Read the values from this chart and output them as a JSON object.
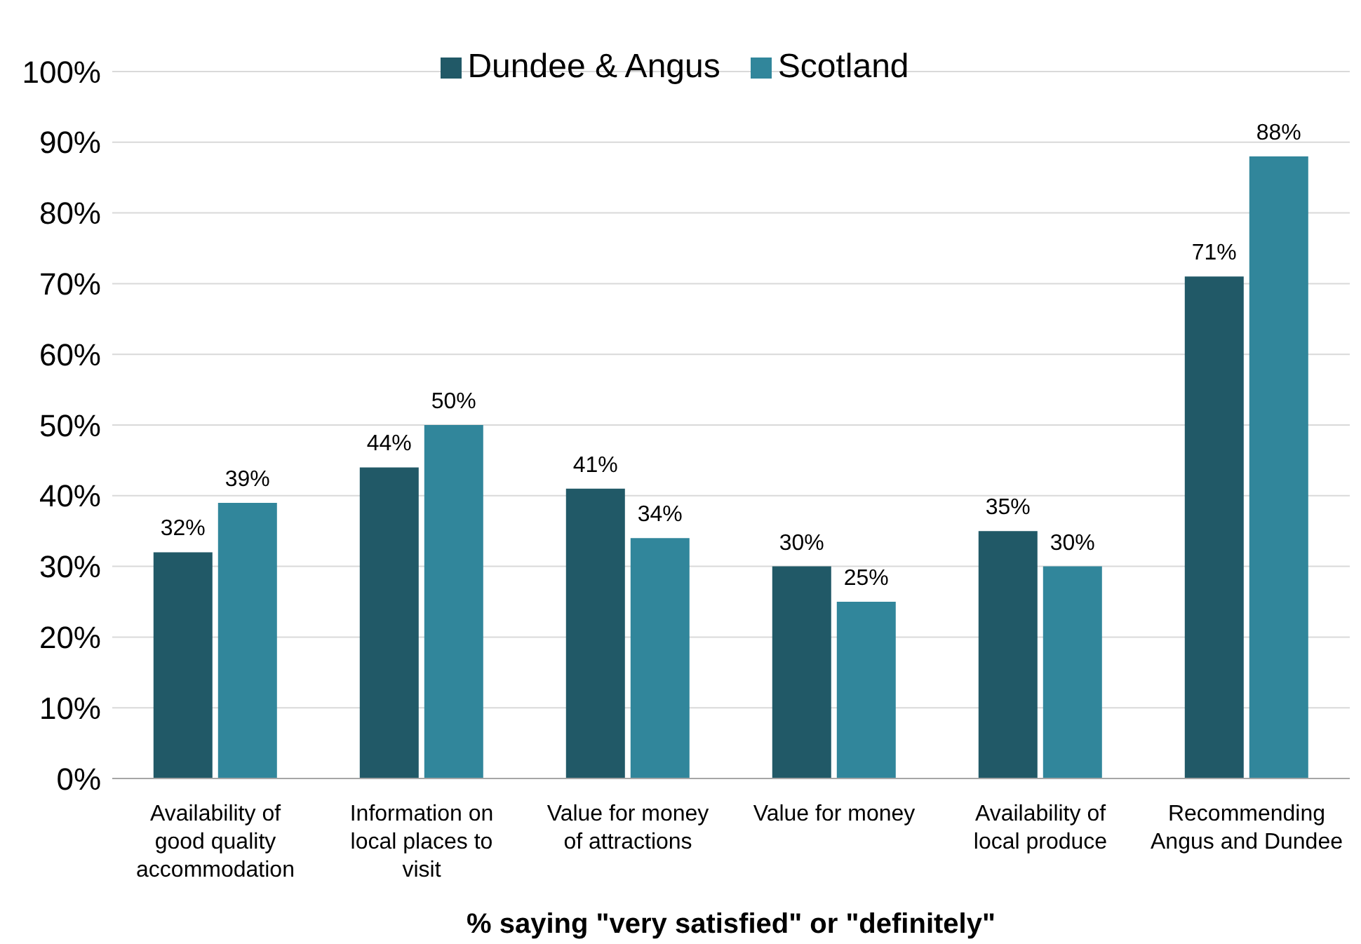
{
  "chart_data": {
    "type": "bar",
    "xlabel": "% saying \"very satisfied\" or \"definitely\"",
    "categories": [
      "Availability of good quality accommodation",
      "Information on local places to visit",
      "Value for money of attractions",
      "Value for money",
      "Availability of local produce",
      "Recommending Angus and Dundee"
    ],
    "series": [
      {
        "name": "Dundee & Angus",
        "color": "#215967",
        "values": [
          32,
          44,
          41,
          30,
          35,
          71
        ],
        "value_labels": [
          "32%",
          "44%",
          "41%",
          "30%",
          "35%",
          "71%"
        ]
      },
      {
        "name": "Scotland",
        "color": "#31869b",
        "values": [
          39,
          50,
          34,
          25,
          30,
          88
        ],
        "value_labels": [
          "39%",
          "50%",
          "34%",
          "25%",
          "30%",
          "88%"
        ]
      }
    ],
    "ylim": [
      0,
      100
    ],
    "yticks": [
      {
        "value": 0,
        "label": "0%"
      },
      {
        "value": 10,
        "label": "10%"
      },
      {
        "value": 20,
        "label": "20%"
      },
      {
        "value": 30,
        "label": "30%"
      },
      {
        "value": 40,
        "label": "40%"
      },
      {
        "value": 50,
        "label": "50%"
      },
      {
        "value": 60,
        "label": "60%"
      },
      {
        "value": 70,
        "label": "70%"
      },
      {
        "value": 80,
        "label": "80%"
      },
      {
        "value": 90,
        "label": "90%"
      },
      {
        "value": 100,
        "label": "100%"
      }
    ],
    "grid": "y",
    "legend": "top"
  }
}
